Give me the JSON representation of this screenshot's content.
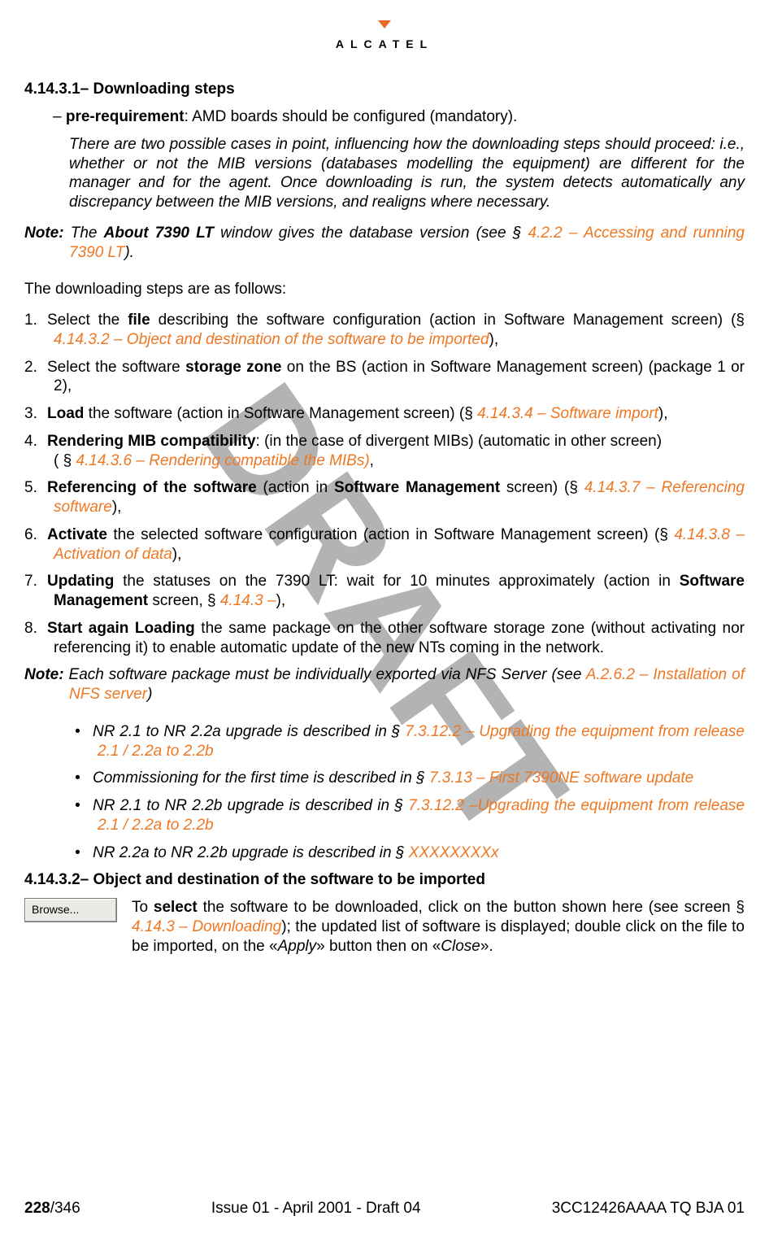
{
  "logo": {
    "brand": "ALCATEL"
  },
  "watermark": "DRAFT",
  "sections": {
    "s1_num": "4.14.3.1–",
    "s1_title": "Downloading steps",
    "s2_num": "4.14.3.2–",
    "s2_title": "Object and destination of the software to be imported"
  },
  "prereq": {
    "label": "pre-requirement",
    "text": ": AMD boards should be configured (mandatory)."
  },
  "cases_para": "There are two possible cases in point, influencing how the downloading steps should proceed: i.e., whether or not the MIB versions (databases modelling the equipment) are different for the manager and for the agent. Once downloading is run, the system detects automatically any discrepancy between the MIB versions, and realigns where necessary.",
  "note1": {
    "label": "Note:",
    "pre": "The ",
    "bold": "About 7390 LT",
    "mid": " window gives the database version (see § ",
    "link": "4.2.2 – Accessing and running 7390 LT",
    "post": ")."
  },
  "intro_line": "The downloading steps are as follows:",
  "steps": [
    {
      "parts": [
        {
          "t": "Select the "
        },
        {
          "t": "file",
          "b": true
        },
        {
          "t": " describing the software configuration (action in Software Management screen) (§  "
        },
        {
          "t": "4.14.3.2 – Object and destination of the software to be imported",
          "link": true
        },
        {
          "t": "),"
        }
      ]
    },
    {
      "parts": [
        {
          "t": "Select the software "
        },
        {
          "t": "storage zone",
          "b": true
        },
        {
          "t": " on the BS (action in Software Management screen) (package 1 or 2),"
        }
      ]
    },
    {
      "parts": [
        {
          "t": "Load",
          "b": true
        },
        {
          "t": " the software (action in Software Management screen) (§ "
        },
        {
          "t": "4.14.3.4 – Software import",
          "link": true
        },
        {
          "t": "),"
        }
      ]
    },
    {
      "parts": [
        {
          "t": "Rendering MIB compatibility",
          "b": true
        },
        {
          "t": ": (in the case of divergent MIBs) (automatic in other screen)"
        },
        {
          "t": "\n( §  "
        },
        {
          "t": "4.14.3.6 – Rendering compatible the MIBs)",
          "link": true
        },
        {
          "t": ","
        }
      ]
    },
    {
      "parts": [
        {
          "t": "Referencing of the software",
          "b": true
        },
        {
          "t": " (action in "
        },
        {
          "t": "Software Management",
          "b": true
        },
        {
          "t": " screen) (§ "
        },
        {
          "t": "4.14.3.7 – Referencing software",
          "link": true
        },
        {
          "t": "),"
        }
      ]
    },
    {
      "parts": [
        {
          "t": "Activate",
          "b": true
        },
        {
          "t": " the selected software configuration (action in Software Management screen) (§ "
        },
        {
          "t": "4.14.3.8 – Activation of data",
          "link": true
        },
        {
          "t": "),"
        }
      ]
    },
    {
      "parts": [
        {
          "t": "Updating",
          "b": true
        },
        {
          "t": " the statuses on the 7390 LT: wait for 10 minutes approximately (action in "
        },
        {
          "t": "Software Management",
          "b": true
        },
        {
          "t": " screen, § "
        },
        {
          "t": "4.14.3 –",
          "link": true
        },
        {
          "t": "),"
        }
      ]
    },
    {
      "parts": [
        {
          "t": "Start again Loading",
          "b": true
        },
        {
          "t": " the same package on the other software storage zone (without activating nor referencing it) to enable automatic update of the new NTs coming in the network."
        }
      ]
    }
  ],
  "note2": {
    "label": "Note:",
    "pre": "Each software package must be individually exported via NFS Server (see ",
    "link": "A.2.6.2 – Installation of NFS server",
    "post": ")"
  },
  "sub_bullets": [
    {
      "parts": [
        {
          "t": "NR 2.1 to NR 2.2a upgrade is described in § "
        },
        {
          "t": "7.3.12.2 – Upgrading the equipment from release 2.1 / 2.2a to 2.2b",
          "link": true
        }
      ]
    },
    {
      "parts": [
        {
          "t": "Commissioning for the first time is described in § "
        },
        {
          "t": "7.3.13 – First 7390NE software update",
          "link": true
        }
      ]
    },
    {
      "parts": [
        {
          "t": "NR 2.1 to NR 2.2b upgrade is described in § "
        },
        {
          "t": "7.3.12.2 –Upgrading the equipment from release 2.1 / 2.2a to 2.2b",
          "link": true
        }
      ]
    },
    {
      "parts": [
        {
          "t": "NR 2.2a to NR 2.2b upgrade is described in § "
        },
        {
          "t": "XXXXXXXXx",
          "link": true
        }
      ]
    }
  ],
  "browse": {
    "button": "Browse...",
    "pre": "To ",
    "bold": "select",
    "mid1": " the software to be downloaded, click on the button shown here (see screen § ",
    "link": "4.14.3 – Downloading",
    "mid2": "); the updated list of software is displayed; double click on the file to be imported, on the «",
    "apply": "Apply",
    "mid3": "» button then on «",
    "close": "Close",
    "post": "»."
  },
  "footer": {
    "page_bold": "228",
    "page_total": "/346",
    "center": "Issue 01 - April 2001 - Draft 04",
    "right": "3CC12426AAAA TQ BJA 01"
  },
  "colors": {
    "link": "#ee7722",
    "watermark": "#b3b3b3",
    "button_bg": "#eceae6",
    "button_border": "#7a7a7a"
  }
}
